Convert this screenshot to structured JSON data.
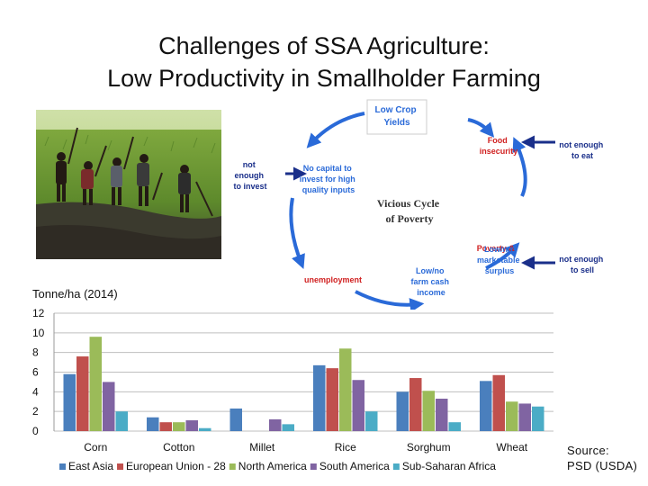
{
  "title_line1": "Challenges of SSA Agriculture:",
  "title_line2": "Low Productivity in Smallholder Farming",
  "cycle": {
    "center": [
      "Vicious Cycle",
      "of Poverty"
    ],
    "low_yields": [
      "Low Crop",
      "Yields"
    ],
    "food_insecurity": [
      "Food",
      "insecurity"
    ],
    "marketable": [
      "Low/no",
      "marketable",
      "surplus"
    ],
    "cash_income": [
      "Low/no",
      "farm cash",
      "income"
    ],
    "poverty": [
      "Poverty &",
      "unemployment"
    ],
    "no_capital": [
      "No capital to",
      "invest for high",
      "quality inputs"
    ],
    "not_enough_invest": [
      "not",
      "enough",
      "to invest"
    ],
    "not_enough_eat": [
      "not enough",
      "to eat"
    ],
    "not_enough_sell": [
      "not enough",
      "to sell"
    ]
  },
  "source": [
    "Source:",
    "PSD (USDA)"
  ],
  "colors": {
    "east_asia": "#4a7fbd",
    "eu": "#c0504d",
    "north_america": "#9bbb59",
    "south_america": "#8064a2",
    "ssa": "#4bacc6",
    "cycle_arrow": "#2a6ad8",
    "red_text": "#d02020"
  },
  "chart_data": {
    "type": "bar",
    "ylabel": "Tonne/ha (2014)",
    "ylim": [
      0,
      12
    ],
    "yticks": [
      0,
      2,
      4,
      6,
      8,
      10,
      12
    ],
    "grid": true,
    "legend_position": "bottom",
    "categories": [
      "Corn",
      "Cotton",
      "Millet",
      "Rice",
      "Sorghum",
      "Wheat"
    ],
    "series": [
      {
        "name": "East Asia",
        "color": "#4a7fbd",
        "values": [
          5.8,
          1.4,
          2.3,
          6.7,
          4.0,
          5.1
        ]
      },
      {
        "name": "European Union - 28",
        "color": "#c0504d",
        "values": [
          7.6,
          0.9,
          0,
          6.4,
          5.4,
          5.7
        ]
      },
      {
        "name": "North America",
        "color": "#9bbb59",
        "values": [
          9.6,
          0.9,
          0,
          8.4,
          4.1,
          3.0
        ]
      },
      {
        "name": "South America",
        "color": "#8064a2",
        "values": [
          5.0,
          1.1,
          1.2,
          5.2,
          3.3,
          2.8
        ]
      },
      {
        "name": "Sub-Saharan Africa",
        "color": "#4bacc6",
        "values": [
          2.0,
          0.3,
          0.7,
          2.0,
          0.9,
          2.5
        ]
      }
    ]
  }
}
